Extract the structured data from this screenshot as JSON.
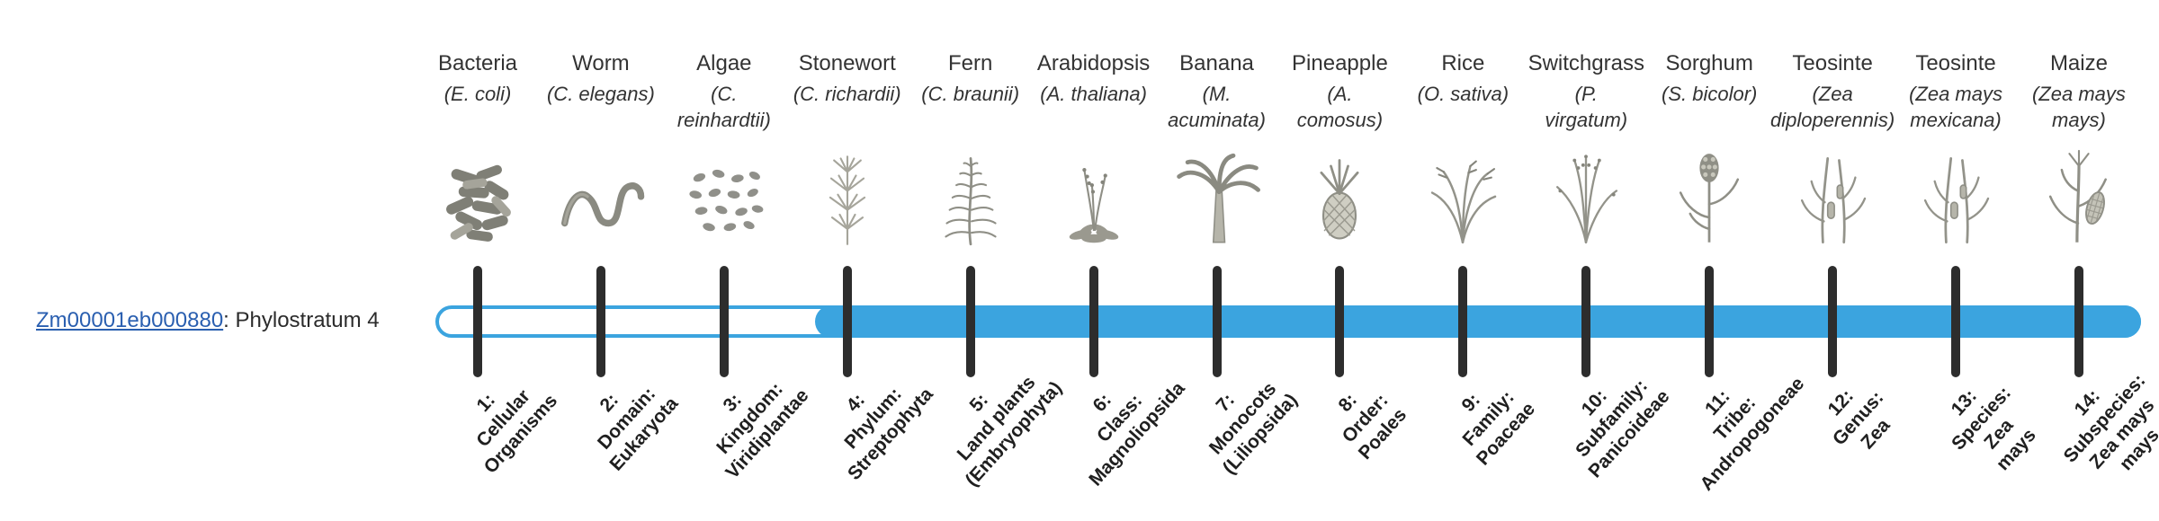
{
  "gene": {
    "id": "Zm00001eb000880",
    "stratum_text": ": Phylostratum 4"
  },
  "timeline": {
    "bar_color": "#3ba4df",
    "track_border_color": "#3ba4df",
    "track_background": "#ffffff",
    "tick_color": "#2d2d2d",
    "filled_from_stratum": 4,
    "link_color": "#2a5fb0"
  },
  "strata": [
    {
      "index": 1,
      "common": "Bacteria",
      "scientific": "(E. coli)",
      "icon": "bacteria-icon",
      "label": "1:\nCellular\nOrganisms"
    },
    {
      "index": 2,
      "common": "Worm",
      "scientific": "(C. elegans)",
      "icon": "worm-icon",
      "label": "2:\nDomain:\nEukaryota"
    },
    {
      "index": 3,
      "common": "Algae",
      "scientific": "(C.\nreinhardtii)",
      "icon": "algae-icon",
      "label": "3:\nKingdom:\nViridiplantae"
    },
    {
      "index": 4,
      "common": "Stonewort",
      "scientific": "(C. richardii)",
      "icon": "stonewort-icon",
      "label": "4:\nPhylum:\nStreptophyta"
    },
    {
      "index": 5,
      "common": "Fern",
      "scientific": "(C. braunii)",
      "icon": "fern-icon",
      "label": "5:\nLand plants\n(Embryophyta)"
    },
    {
      "index": 6,
      "common": "Arabidopsis",
      "scientific": "(A. thaliana)",
      "icon": "arabidopsis-icon",
      "label": "6:\nClass:\nMagnoliopsida"
    },
    {
      "index": 7,
      "common": "Banana",
      "scientific": "(M.\nacuminata)",
      "icon": "banana-palm-icon",
      "label": "7:\nMonocots\n(Liliopsida)"
    },
    {
      "index": 8,
      "common": "Pineapple",
      "scientific": "(A.\ncomosus)",
      "icon": "pineapple-icon",
      "label": "8:\nOrder:\nPoales"
    },
    {
      "index": 9,
      "common": "Rice",
      "scientific": "(O. sativa)",
      "icon": "rice-icon",
      "label": "9:\nFamily:\nPoaceae"
    },
    {
      "index": 10,
      "common": "Switchgrass",
      "scientific": "(P.\nvirgatum)",
      "icon": "switchgrass-icon",
      "label": "10:\nSubfamily:\nPanicoideae"
    },
    {
      "index": 11,
      "common": "Sorghum",
      "scientific": "(S. bicolor)",
      "icon": "sorghum-icon",
      "label": "11:\nTribe:\nAndropogoneae"
    },
    {
      "index": 12,
      "common": "Teosinte",
      "scientific": "(Zea\ndiploperennis)",
      "icon": "teosinte-icon",
      "label": "12:\nGenus:\nZea"
    },
    {
      "index": 13,
      "common": "Teosinte",
      "scientific": "(Zea mays\nmexicana)",
      "icon": "teosinte-icon",
      "label": "13:\nSpecies:\nZea\nmays"
    },
    {
      "index": 14,
      "common": "Maize",
      "scientific": "(Zea mays\nmays)",
      "icon": "maize-icon",
      "label": "14:\nSubspecies:\nZea mays\nmays"
    }
  ]
}
